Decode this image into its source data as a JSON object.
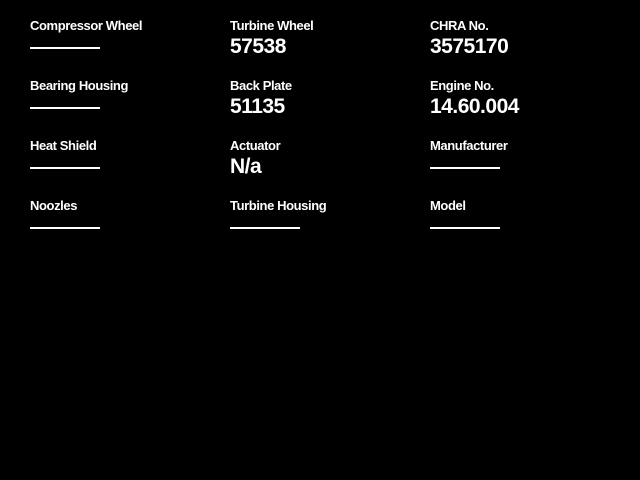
{
  "page": {
    "background_color": "#000000",
    "text_color": "#ffffff"
  },
  "columns": [
    {
      "fields": [
        {
          "label": "Compressor Wheel",
          "value": ""
        },
        {
          "label": "Bearing Housing",
          "value": ""
        },
        {
          "label": "Heat Shield",
          "value": ""
        },
        {
          "label": "Noozles",
          "value": ""
        }
      ]
    },
    {
      "fields": [
        {
          "label": "Turbine Wheel",
          "value": "57538"
        },
        {
          "label": "Back Plate",
          "value": "51135"
        },
        {
          "label": "Actuator",
          "value": "N/a"
        },
        {
          "label": "Turbine Housing",
          "value": ""
        }
      ]
    },
    {
      "fields": [
        {
          "label": "CHRA No.",
          "value": "3575170"
        },
        {
          "label": "Engine No.",
          "value": "14.60.004"
        },
        {
          "label": "Manufacturer",
          "value": ""
        },
        {
          "label": "Model",
          "value": ""
        }
      ]
    }
  ]
}
